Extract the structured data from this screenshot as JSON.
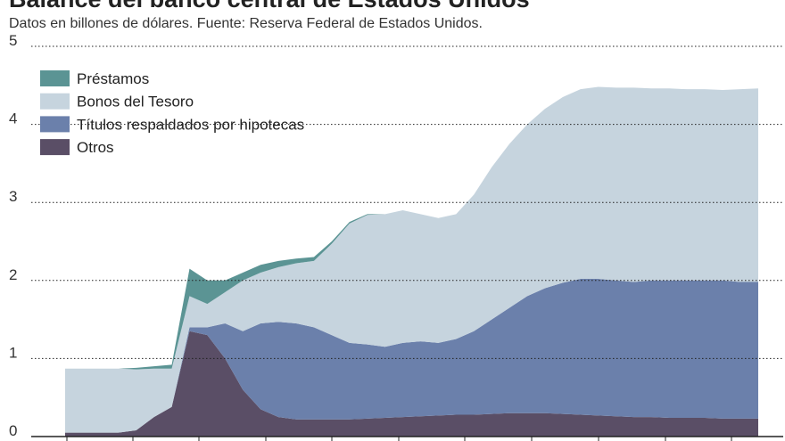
{
  "chart_data": {
    "type": "stacked-area",
    "title": "Balance del banco central de Estados Unidos",
    "subtitle": "Datos en billones de dólares. Fuente: Reserva Federal de Estados Unidos.",
    "categories": [
      null,
      null,
      null,
      null,
      null,
      null,
      null,
      null,
      null,
      null,
      null,
      null,
      null,
      null,
      null,
      null,
      null,
      null,
      null,
      null,
      null,
      null,
      null,
      null,
      null,
      null,
      null,
      null,
      null,
      null,
      null,
      null,
      null,
      null,
      null,
      null,
      null,
      null,
      null,
      null
    ],
    "ylim": [
      0,
      5
    ],
    "yticks": [
      0,
      1,
      2,
      3,
      4,
      5
    ],
    "grid": true,
    "series": [
      {
        "name": "Préstamos",
        "color": "#5b9494",
        "values": [
          0,
          0,
          0,
          0,
          0.02,
          0.03,
          0.05,
          0.35,
          0.3,
          0.15,
          0.1,
          0.1,
          0.08,
          0.06,
          0.05,
          0.03,
          0.02,
          0.01,
          0,
          0,
          0,
          0,
          0,
          0,
          0,
          0,
          0,
          0,
          0,
          0,
          0,
          0,
          0,
          0,
          0,
          0,
          0,
          0,
          0,
          0
        ]
      },
      {
        "name": "Bonos del Tesoro",
        "color": "#c6d4de",
        "values": [
          0.82,
          0.82,
          0.82,
          0.82,
          0.78,
          0.62,
          0.49,
          0.4,
          0.3,
          0.4,
          0.65,
          0.65,
          0.7,
          0.77,
          0.85,
          1.17,
          1.53,
          1.66,
          1.7,
          1.7,
          1.63,
          1.6,
          1.6,
          1.75,
          1.95,
          2.1,
          2.2,
          2.3,
          2.38,
          2.43,
          2.46,
          2.47,
          2.49,
          2.46,
          2.46,
          2.45,
          2.45,
          2.44,
          2.47,
          2.48
        ]
      },
      {
        "name": "Títulos respaldados por hipotecas",
        "color": "#6b80ab",
        "values": [
          0,
          0,
          0,
          0,
          0,
          0,
          0,
          0.05,
          0.1,
          0.45,
          0.75,
          1.1,
          1.22,
          1.23,
          1.18,
          1.08,
          0.98,
          0.95,
          0.91,
          0.95,
          0.96,
          0.93,
          0.97,
          1.07,
          1.21,
          1.35,
          1.5,
          1.6,
          1.68,
          1.74,
          1.75,
          1.74,
          1.73,
          1.75,
          1.76,
          1.76,
          1.76,
          1.77,
          1.75,
          1.75
        ]
      },
      {
        "name": "Otros",
        "color": "#5a4e66",
        "values": [
          0.05,
          0.05,
          0.05,
          0.05,
          0.08,
          0.25,
          0.38,
          1.35,
          1.3,
          1.0,
          0.6,
          0.35,
          0.25,
          0.22,
          0.22,
          0.22,
          0.22,
          0.23,
          0.24,
          0.25,
          0.26,
          0.27,
          0.28,
          0.28,
          0.29,
          0.3,
          0.3,
          0.3,
          0.29,
          0.28,
          0.27,
          0.26,
          0.25,
          0.25,
          0.24,
          0.24,
          0.24,
          0.23,
          0.23,
          0.23
        ]
      }
    ]
  }
}
